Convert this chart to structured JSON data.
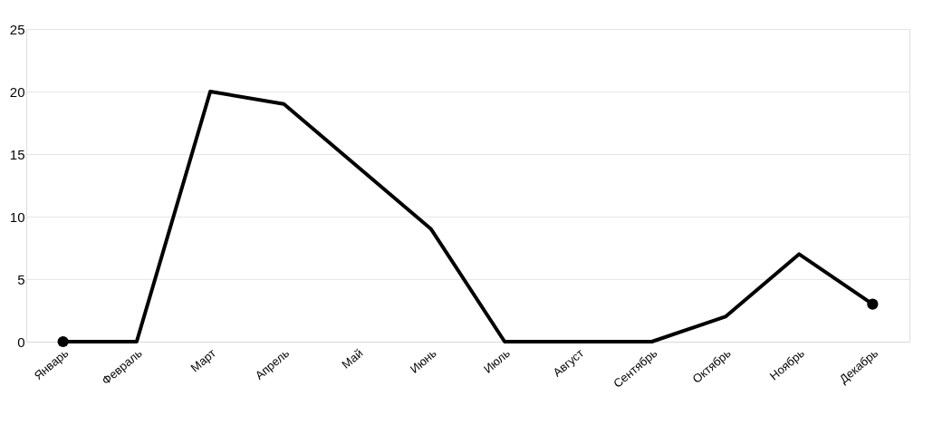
{
  "chart_data": {
    "type": "line",
    "categories": [
      "Январь",
      "Февраль",
      "Март",
      "Апрель",
      "Май",
      "Июнь",
      "Июль",
      "Август",
      "Сентябрь",
      "Октябрь",
      "Ноябрь",
      "Декабрь"
    ],
    "series": [
      {
        "color": "#000000",
        "values": [
          0,
          0,
          20,
          19,
          14,
          9,
          0,
          0,
          0,
          2,
          7,
          3
        ]
      },
      {
        "type": "scatter",
        "color": "#000000",
        "marker": "circle",
        "values": [
          0,
          null,
          null,
          null,
          null,
          null,
          null,
          null,
          null,
          null,
          null,
          3
        ]
      }
    ],
    "ylim": [
      0,
      25
    ],
    "yticks": [
      0,
      5,
      10,
      15,
      20,
      25
    ],
    "grid": "y"
  }
}
